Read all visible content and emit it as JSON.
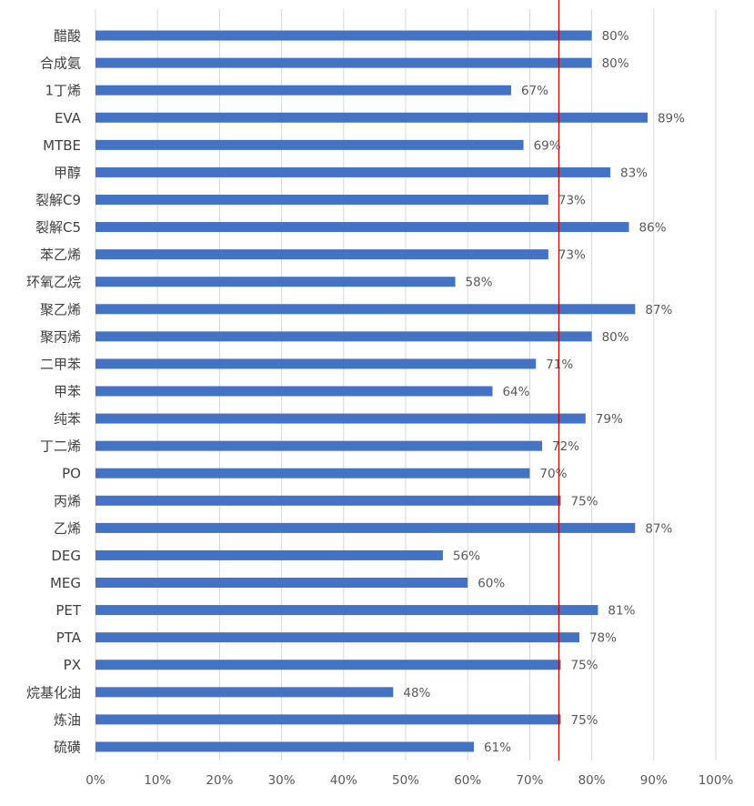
{
  "chart_data": {
    "type": "bar",
    "orientation": "horizontal",
    "categories": [
      "醋酸",
      "合成氨",
      "1丁烯",
      "EVA",
      "MTBE",
      "甲醇",
      "裂解C9",
      "裂解C5",
      "苯乙烯",
      "环氧乙烷",
      "聚乙烯",
      "聚丙烯",
      "二甲苯",
      "甲苯",
      "纯苯",
      "丁二烯",
      "PO",
      "丙烯",
      "乙烯",
      "DEG",
      "MEG",
      "PET",
      "PTA",
      "PX",
      "烷基化油",
      "炼油",
      "硫磺"
    ],
    "values": [
      0.8,
      0.8,
      0.67,
      0.89,
      0.69,
      0.83,
      0.73,
      0.86,
      0.73,
      0.58,
      0.87,
      0.8,
      0.71,
      0.64,
      0.79,
      0.72,
      0.7,
      0.75,
      0.87,
      0.56,
      0.6,
      0.81,
      0.78,
      0.75,
      0.48,
      0.75,
      0.61
    ],
    "value_labels": [
      "80%",
      "80%",
      "67%",
      "89%",
      "69%",
      "83%",
      "73%",
      "86%",
      "73%",
      "58%",
      "87%",
      "80%",
      "71%",
      "64%",
      "79%",
      "72%",
      "70%",
      "75%",
      "87%",
      "56%",
      "60%",
      "81%",
      "78%",
      "75%",
      "48%",
      "75%",
      "61%"
    ],
    "x_ticks": [
      "0%",
      "10%",
      "20%",
      "30%",
      "40%",
      "50%",
      "60%",
      "70%",
      "80%",
      "90%",
      "100%"
    ],
    "xlim": [
      0,
      1
    ],
    "reference_line": 0.747,
    "grid": true,
    "title": "",
    "xlabel": "",
    "ylabel": "",
    "colors": {
      "bar": "#4472c4",
      "reference_line": "#c00000",
      "grid": "#d9d9d9"
    }
  }
}
